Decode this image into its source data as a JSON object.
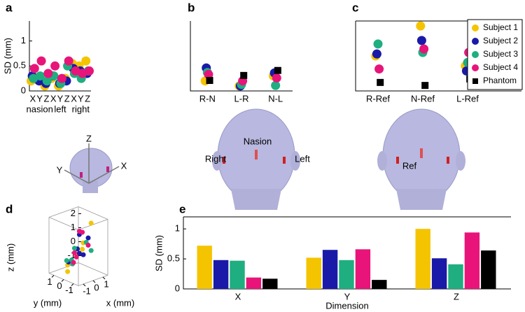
{
  "chart_data": [
    {
      "type": "dot",
      "panel_label": "a",
      "ylabel": "SD (mm)",
      "categories": [
        "X",
        "Y",
        "Z",
        "X",
        "Y",
        "Z",
        "X",
        "Y",
        "Z"
      ],
      "groups": [
        "nasion",
        "left",
        "right"
      ],
      "ylim": [
        0,
        1.4
      ],
      "yticks": [
        0,
        0.5,
        1
      ],
      "series": [
        {
          "name": "Subject 1",
          "color": "#f5c400",
          "values": [
            0.2,
            0.25,
            0.1,
            0.25,
            0.1,
            0.25,
            0.55,
            0.5,
            0.6
          ]
        },
        {
          "name": "Subject 2",
          "color": "#1a1aa8",
          "values": [
            0.3,
            0.2,
            0.15,
            0.3,
            0.15,
            0.2,
            0.45,
            0.4,
            0.35
          ]
        },
        {
          "name": "Subject 3",
          "color": "#1fae80",
          "values": [
            0.25,
            0.3,
            0.2,
            0.3,
            0.15,
            0.5,
            0.35,
            0.25,
            0.4
          ]
        },
        {
          "name": "Subject 4",
          "color": "#e8147a",
          "values": [
            0.45,
            0.6,
            0.35,
            0.5,
            0.25,
            0.6,
            0.4,
            0.35,
            0.4
          ]
        }
      ],
      "annotations": [
        "Z",
        "Y",
        "X"
      ]
    },
    {
      "type": "dot",
      "panel_label": "b",
      "categories": [
        "R-N",
        "L-R",
        "N-L"
      ],
      "ylim": [
        0,
        1.4
      ],
      "series": [
        {
          "name": "Subject 1",
          "color": "#f5c400",
          "values": [
            0.2,
            0.1,
            0.3
          ]
        },
        {
          "name": "Subject 2",
          "color": "#1a1aa8",
          "values": [
            0.46,
            0.1,
            0.36
          ]
        },
        {
          "name": "Subject 3",
          "color": "#1fae80",
          "values": [
            0.37,
            0.13,
            0.11
          ]
        },
        {
          "name": "Subject 4",
          "color": "#e8147a",
          "values": [
            0.33,
            0.2,
            0.26
          ]
        },
        {
          "name": "Phantom",
          "color": "#000000",
          "values": [
            0.21,
            0.31,
            0.41
          ]
        }
      ],
      "annotations": [
        "Nasion",
        "Right",
        "Left"
      ]
    },
    {
      "type": "dot",
      "panel_label": "c",
      "categories": [
        "R-Ref",
        "N-Ref",
        "L-Ref"
      ],
      "ylim": [
        0,
        1.4
      ],
      "legend": "upper right",
      "series": [
        {
          "name": "Subject 1",
          "color": "#f5c400",
          "values": [
            0.7,
            1.3,
            0.5
          ]
        },
        {
          "name": "Subject 2",
          "color": "#1a1aa8",
          "values": [
            0.74,
            1.01,
            0.4
          ]
        },
        {
          "name": "Subject 3",
          "color": "#1fae80",
          "values": [
            0.94,
            0.77,
            0.57
          ]
        },
        {
          "name": "Subject 4",
          "color": "#e8147a",
          "values": [
            0.44,
            0.84,
            0.77
          ]
        },
        {
          "name": "Phantom",
          "color": "#000000",
          "values": [
            0.17,
            0.11,
            0.24
          ]
        }
      ],
      "annotations": [
        "Ref"
      ]
    },
    {
      "type": "scatter3d",
      "panel_label": "d",
      "xlabel": "x (mm)",
      "ylabel": "y (mm)",
      "zlabel": "z (mm)",
      "xlim": [
        -1.5,
        1.5
      ],
      "ylim": [
        -1.5,
        1.5
      ],
      "zlim": [
        -1.5,
        2.5
      ],
      "xticks": [
        -1,
        0,
        1
      ],
      "yticks": [
        1,
        0,
        -1
      ],
      "zticks": [
        -1,
        0,
        1,
        2
      ],
      "series": [
        {
          "name": "Subject 1",
          "color": "#f5c400",
          "x": [
            0.8,
            -0.5,
            0.2,
            -0.8,
            0.5,
            -0.2
          ],
          "y": [
            -0.5,
            0.6,
            -0.2,
            0.3,
            0.8,
            -0.7
          ],
          "z": [
            2.1,
            -0.9,
            0.3,
            -1.2,
            -0.4,
            1.0
          ]
        },
        {
          "name": "Subject 2",
          "color": "#1a1aa8",
          "x": [
            0.3,
            -0.4,
            0.6,
            -0.1,
            0.9,
            -0.6
          ],
          "y": [
            0.2,
            -0.3,
            0.5,
            -0.6,
            -0.1,
            0.4
          ],
          "z": [
            1.2,
            0.5,
            -0.3,
            0.1,
            0.9,
            -0.6
          ]
        },
        {
          "name": "Subject 3",
          "color": "#1fae80",
          "x": [
            -0.7,
            0.4,
            0.1,
            -0.3,
            0.7,
            -0.9
          ],
          "y": [
            0.5,
            -0.4,
            0.7,
            0.1,
            -0.6,
            -0.2
          ],
          "z": [
            -0.5,
            0.8,
            -1.0,
            0.4,
            0.2,
            -0.2
          ]
        },
        {
          "name": "Subject 4",
          "color": "#e8147a",
          "x": [
            0.0,
            -0.2,
            0.5,
            -0.6,
            0.2,
            0.4
          ],
          "y": [
            -0.1,
            0.3,
            -0.5,
            -0.4,
            0.6,
            0.0
          ],
          "z": [
            1.6,
            -0.7,
            0.6,
            0.0,
            -0.2,
            1.4
          ]
        }
      ]
    },
    {
      "type": "bar",
      "panel_label": "e",
      "ylabel": "SD (mm)",
      "xlabel": "Dimension",
      "categories": [
        "X",
        "Y",
        "Z"
      ],
      "ylim": [
        0,
        1.2
      ],
      "yticks": [
        0,
        0.5,
        1
      ],
      "series": [
        {
          "name": "Subject 1",
          "color": "#f5c400",
          "values": [
            0.72,
            0.52,
            1.0
          ]
        },
        {
          "name": "Subject 2",
          "color": "#1a1aa8",
          "values": [
            0.48,
            0.65,
            0.51
          ]
        },
        {
          "name": "Subject 3",
          "color": "#1fae80",
          "values": [
            0.47,
            0.48,
            0.41
          ]
        },
        {
          "name": "Subject 4",
          "color": "#e8147a",
          "values": [
            0.19,
            0.66,
            0.94
          ]
        },
        {
          "name": "Phantom",
          "color": "#000000",
          "values": [
            0.17,
            0.15,
            0.64
          ]
        }
      ]
    }
  ]
}
